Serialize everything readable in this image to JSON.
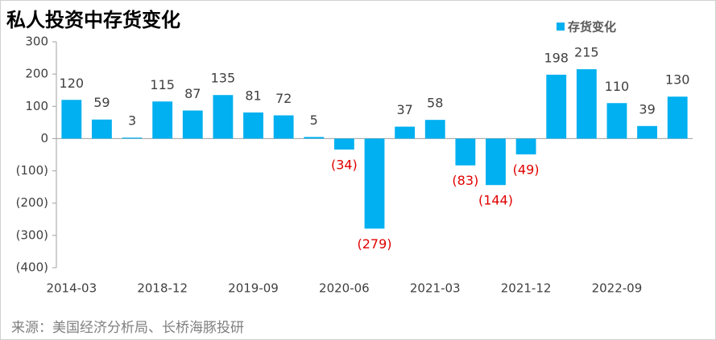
{
  "chart_data": {
    "type": "bar",
    "title": "私人投资中存货变化",
    "source": "来源：美国经济分析局、长桥海豚投研",
    "categories": [
      "2014-03",
      null,
      null,
      "2018-12",
      null,
      null,
      "2019-09",
      null,
      null,
      "2020-06",
      null,
      null,
      "2021-03",
      null,
      null,
      "2021-12",
      null,
      null,
      "2022-09",
      null,
      null
    ],
    "series": [
      {
        "name": "存货变化",
        "color": "#00b0f0",
        "values": [
          120,
          59,
          3,
          115,
          87,
          135,
          81,
          72,
          5,
          -34,
          -279,
          37,
          58,
          -83,
          -144,
          -49,
          198,
          215,
          110,
          39,
          130
        ],
        "value_labels": [
          "120",
          "59",
          "3",
          "115",
          "87",
          "135",
          "81",
          "72",
          "5",
          "(34)",
          "(279)",
          "37",
          "58",
          "(83)",
          "(144)",
          "(49)",
          "198",
          "215",
          "110",
          "39",
          "130"
        ]
      }
    ],
    "negative_label_color": "#e00000",
    "ylim": [
      -400,
      300
    ],
    "yticks": [
      {
        "value": -400,
        "label": "(400)"
      },
      {
        "value": -300,
        "label": "(300)"
      },
      {
        "value": -200,
        "label": "(200)"
      },
      {
        "value": -100,
        "label": "(100)"
      },
      0,
      100,
      200,
      300
    ],
    "legend": "top-right",
    "grid": false
  }
}
